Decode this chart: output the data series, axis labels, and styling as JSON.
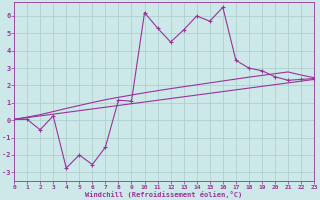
{
  "bg_color": "#cce8e8",
  "grid_color": "#aacccc",
  "line_color": "#993399",
  "xlim": [
    0,
    23
  ],
  "ylim": [
    -3.5,
    6.8
  ],
  "xticks": [
    0,
    1,
    2,
    3,
    4,
    5,
    6,
    7,
    8,
    9,
    10,
    11,
    12,
    13,
    14,
    15,
    16,
    17,
    18,
    19,
    20,
    21,
    22,
    23
  ],
  "yticks": [
    -3,
    -2,
    -1,
    0,
    1,
    2,
    3,
    4,
    5,
    6
  ],
  "xlabel": "Windchill (Refroidissement éolien,°C)",
  "curve1_x": [
    0,
    1,
    2,
    3,
    4,
    5,
    6,
    7,
    8,
    9,
    10,
    11,
    12,
    13,
    14,
    15,
    16,
    17,
    18,
    19,
    20,
    21,
    22,
    23
  ],
  "curve1_y": [
    0.05,
    0.15,
    0.25,
    0.35,
    0.45,
    0.55,
    0.65,
    0.75,
    0.85,
    0.95,
    1.05,
    1.15,
    1.25,
    1.35,
    1.45,
    1.55,
    1.65,
    1.75,
    1.85,
    1.95,
    2.05,
    2.15,
    2.25,
    2.35
  ],
  "curve2_x": [
    0,
    1,
    2,
    3,
    4,
    5,
    6,
    7,
    8,
    9,
    10,
    11,
    12,
    13,
    14,
    15,
    16,
    17,
    18,
    19,
    20,
    21,
    22,
    23
  ],
  "curve2_y": [
    0.05,
    0.18,
    0.32,
    0.5,
    0.68,
    0.85,
    1.02,
    1.18,
    1.32,
    1.45,
    1.58,
    1.7,
    1.82,
    1.93,
    2.04,
    2.15,
    2.26,
    2.37,
    2.48,
    2.58,
    2.68,
    2.78,
    2.6,
    2.45
  ],
  "curve3_x": [
    0,
    1,
    2,
    3,
    4,
    5,
    6,
    7,
    8,
    9,
    10,
    11,
    12,
    13,
    14,
    15,
    16,
    17,
    18,
    19,
    20,
    21,
    22,
    23
  ],
  "curve3_y": [
    0.05,
    0.05,
    -0.55,
    0.25,
    -2.75,
    -2.0,
    -2.55,
    -1.55,
    1.15,
    1.1,
    6.2,
    5.3,
    4.5,
    5.2,
    6.0,
    5.7,
    6.5,
    3.45,
    3.0,
    2.85,
    2.5,
    2.3,
    2.35,
    2.4
  ]
}
